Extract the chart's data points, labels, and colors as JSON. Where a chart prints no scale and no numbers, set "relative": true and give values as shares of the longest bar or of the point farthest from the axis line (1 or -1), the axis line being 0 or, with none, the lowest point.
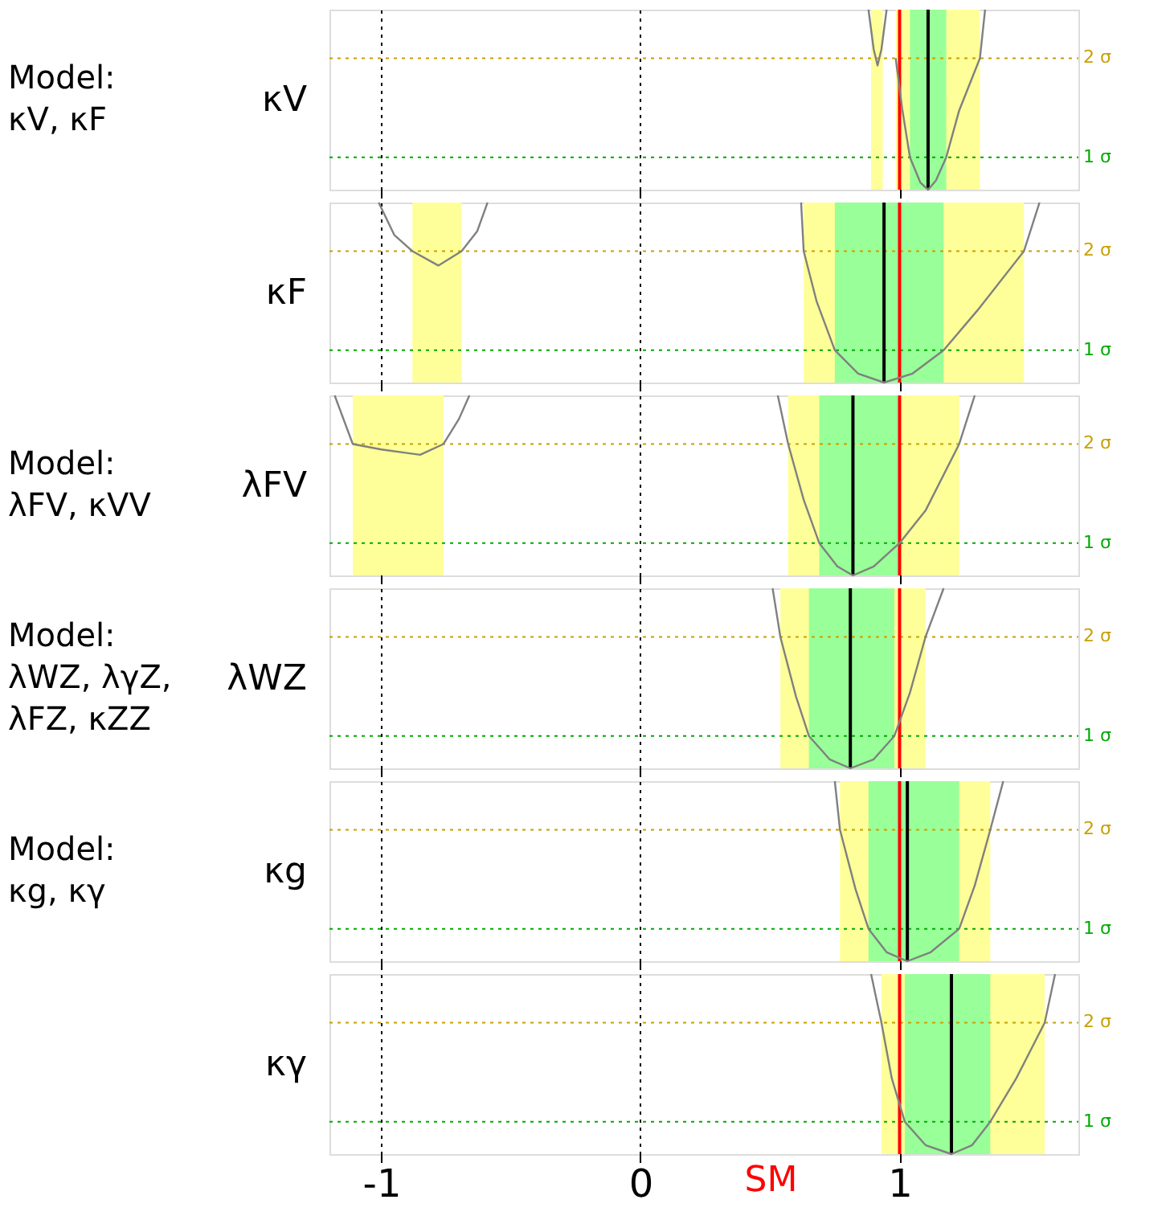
{
  "chart_data": [
    {
      "type": "line",
      "relative": true,
      "ylabel": "κV",
      "annotations": [
        "Model:",
        "κV, κF"
      ],
      "xlim": [
        -1.2,
        1.69
      ],
      "xticks": [
        -1,
        0,
        1
      ],
      "grid": "x",
      "tick_labels": false,
      "series": [
        {
          "color": "#808080",
          "x": [
            0.88,
            0.9,
            0.915,
            0.93,
            0.95,
            0.97,
            0.985,
            1.01,
            1.04,
            1.08,
            1.11,
            1.14,
            1.18,
            1.23,
            1.31,
            1.33
          ],
          "values": [
            1,
            0.78,
            0.69,
            0.78,
            1,
            null,
            0.73,
            0.45,
            0.18,
            0.04,
            0,
            0.05,
            0.18,
            0.44,
            0.73,
            1
          ]
        }
      ],
      "bands": [
        {
          "axis": "x",
          "from": 0.89,
          "to": 0.935,
          "color": "#ffff99"
        },
        {
          "axis": "x",
          "from": 0.985,
          "to": 1.31,
          "color": "#ffff99"
        },
        {
          "axis": "x",
          "from": 1.04,
          "to": 1.18,
          "color": "#99ff99"
        }
      ],
      "ref_lines": [
        {
          "axis": "y",
          "value": 0.18,
          "label": "1 σ",
          "color": "#00aa00",
          "line_style": "dotted"
        },
        {
          "axis": "y",
          "value": 0.73,
          "label": "2 σ",
          "color": "#c8a000",
          "line_style": "dotted"
        },
        {
          "axis": "x",
          "value": 1.11,
          "color": "#000000",
          "line_style": "solid"
        },
        {
          "axis": "x",
          "value": 1,
          "color": "#ff0000",
          "line_style": "solid"
        }
      ]
    },
    {
      "type": "line",
      "relative": true,
      "ylabel": "κF",
      "xlim": [
        -1.2,
        1.69
      ],
      "xticks": [
        -1,
        0,
        1
      ],
      "grid": "x",
      "tick_labels": false,
      "series": [
        {
          "color": "#808080",
          "x": [
            -1.01,
            -0.95,
            -0.88,
            -0.78,
            -0.69,
            -0.63,
            -0.59,
            0,
            0.62,
            0.63,
            0.68,
            0.75,
            0.84,
            0.94,
            1.05,
            1.17,
            1.3,
            1.48,
            1.54
          ],
          "values": [
            1,
            0.82,
            0.73,
            0.65,
            0.73,
            0.84,
            1,
            null,
            1,
            0.73,
            0.45,
            0.18,
            0.05,
            0,
            0.05,
            0.18,
            0.4,
            0.73,
            1
          ]
        }
      ],
      "bands": [
        {
          "axis": "x",
          "from": -0.88,
          "to": -0.69,
          "color": "#ffff99"
        },
        {
          "axis": "x",
          "from": 0.63,
          "to": 1.48,
          "color": "#ffff99"
        },
        {
          "axis": "x",
          "from": 0.75,
          "to": 1.17,
          "color": "#99ff99"
        }
      ],
      "ref_lines": [
        {
          "axis": "y",
          "value": 0.18,
          "label": "1 σ",
          "color": "#00aa00",
          "line_style": "dotted"
        },
        {
          "axis": "y",
          "value": 0.73,
          "label": "2 σ",
          "color": "#c8a000",
          "line_style": "dotted"
        },
        {
          "axis": "x",
          "value": 0.94,
          "color": "#000000",
          "line_style": "solid"
        },
        {
          "axis": "x",
          "value": 1,
          "color": "#ff0000",
          "line_style": "solid"
        }
      ]
    },
    {
      "type": "line",
      "relative": true,
      "ylabel": "λFV",
      "annotations": [
        "Model:",
        "λFV, κVV"
      ],
      "xlim": [
        -1.2,
        1.69
      ],
      "xticks": [
        -1,
        0,
        1
      ],
      "grid": "x",
      "tick_labels": false,
      "series": [
        {
          "color": "#808080",
          "x": [
            -1.18,
            -1.11,
            -1.0,
            -0.85,
            -0.76,
            -0.7,
            -0.66,
            0,
            0.53,
            0.57,
            0.63,
            0.69,
            0.76,
            0.82,
            0.9,
            1.0,
            1.1,
            1.23,
            1.29
          ],
          "values": [
            1,
            0.73,
            0.7,
            0.67,
            0.73,
            0.87,
            1,
            null,
            1,
            0.73,
            0.42,
            0.18,
            0.05,
            0,
            0.05,
            0.18,
            0.36,
            0.73,
            1
          ]
        }
      ],
      "bands": [
        {
          "axis": "x",
          "from": -1.11,
          "to": -0.76,
          "color": "#ffff99"
        },
        {
          "axis": "x",
          "from": 0.57,
          "to": 1.23,
          "color": "#ffff99"
        },
        {
          "axis": "x",
          "from": 0.69,
          "to": 1.0,
          "color": "#99ff99"
        }
      ],
      "ref_lines": [
        {
          "axis": "y",
          "value": 0.18,
          "label": "1 σ",
          "color": "#00aa00",
          "line_style": "dotted"
        },
        {
          "axis": "y",
          "value": 0.73,
          "label": "2 σ",
          "color": "#c8a000",
          "line_style": "dotted"
        },
        {
          "axis": "x",
          "value": 0.82,
          "color": "#000000",
          "line_style": "solid"
        },
        {
          "axis": "x",
          "value": 1,
          "color": "#ff0000",
          "line_style": "solid"
        }
      ]
    },
    {
      "type": "line",
      "relative": true,
      "ylabel": "λWZ",
      "annotations": [
        "Model:",
        "λWZ, λγZ,",
        "λFZ, κZZ"
      ],
      "xlim": [
        -1.2,
        1.69
      ],
      "xticks": [
        -1,
        0,
        1
      ],
      "grid": "x",
      "tick_labels": false,
      "series": [
        {
          "color": "#808080",
          "x": [
            0.51,
            0.54,
            0.6,
            0.65,
            0.73,
            0.81,
            0.9,
            0.98,
            1.04,
            1.1,
            1.17
          ],
          "values": [
            1,
            0.73,
            0.4,
            0.18,
            0.05,
            0,
            0.05,
            0.18,
            0.42,
            0.73,
            1
          ]
        }
      ],
      "bands": [
        {
          "axis": "x",
          "from": 0.54,
          "to": 1.1,
          "color": "#ffff99"
        },
        {
          "axis": "x",
          "from": 0.65,
          "to": 0.98,
          "color": "#99ff99"
        }
      ],
      "ref_lines": [
        {
          "axis": "y",
          "value": 0.18,
          "label": "1 σ",
          "color": "#00aa00",
          "line_style": "dotted"
        },
        {
          "axis": "y",
          "value": 0.73,
          "label": "2 σ",
          "color": "#c8a000",
          "line_style": "dotted"
        },
        {
          "axis": "x",
          "value": 0.81,
          "color": "#000000",
          "line_style": "solid"
        },
        {
          "axis": "x",
          "value": 1,
          "color": "#ff0000",
          "line_style": "solid"
        }
      ]
    },
    {
      "type": "line",
      "relative": true,
      "ylabel": "κg",
      "annotations": [
        "Model:",
        "κg, κγ"
      ],
      "xlim": [
        -1.2,
        1.69
      ],
      "xticks": [
        -1,
        0,
        1
      ],
      "grid": "x",
      "tick_labels": false,
      "series": [
        {
          "color": "#808080",
          "x": [
            0.75,
            0.77,
            0.83,
            0.88,
            0.95,
            1.03,
            1.12,
            1.23,
            1.29,
            1.35,
            1.4
          ],
          "values": [
            1,
            0.73,
            0.4,
            0.18,
            0.05,
            0,
            0.05,
            0.18,
            0.42,
            0.73,
            1
          ]
        }
      ],
      "bands": [
        {
          "axis": "x",
          "from": 0.77,
          "to": 1.35,
          "color": "#ffff99"
        },
        {
          "axis": "x",
          "from": 0.88,
          "to": 1.23,
          "color": "#99ff99"
        }
      ],
      "ref_lines": [
        {
          "axis": "y",
          "value": 0.18,
          "label": "1 σ",
          "color": "#00aa00",
          "line_style": "dotted"
        },
        {
          "axis": "y",
          "value": 0.73,
          "label": "2 σ",
          "color": "#c8a000",
          "line_style": "dotted"
        },
        {
          "axis": "x",
          "value": 1.03,
          "color": "#000000",
          "line_style": "solid"
        },
        {
          "axis": "x",
          "value": 1,
          "color": "#ff0000",
          "line_style": "solid"
        }
      ]
    },
    {
      "type": "line",
      "relative": true,
      "ylabel": "κγ",
      "xlim": [
        -1.2,
        1.69
      ],
      "xticks": [
        -1,
        0,
        1
      ],
      "grid": "x",
      "tick_labels": "x",
      "series": [
        {
          "color": "#808080",
          "x": [
            0.89,
            0.93,
            0.97,
            1.02,
            1.1,
            1.2,
            1.28,
            1.35,
            1.45,
            1.56,
            1.6
          ],
          "values": [
            1,
            0.73,
            0.42,
            0.18,
            0.05,
            0,
            0.05,
            0.18,
            0.42,
            0.73,
            1
          ]
        }
      ],
      "bands": [
        {
          "axis": "x",
          "from": 0.93,
          "to": 1.56,
          "color": "#ffff99"
        },
        {
          "axis": "x",
          "from": 1.02,
          "to": 1.35,
          "color": "#99ff99"
        }
      ],
      "ref_lines": [
        {
          "axis": "y",
          "value": 0.18,
          "label": "1 σ",
          "color": "#00aa00",
          "line_style": "dotted"
        },
        {
          "axis": "y",
          "value": 0.73,
          "label": "2 σ",
          "color": "#c8a000",
          "line_style": "dotted"
        },
        {
          "axis": "x",
          "value": 1.2,
          "color": "#000000",
          "line_style": "solid"
        },
        {
          "axis": "x",
          "value": 1,
          "color": "#ff0000",
          "line_style": "solid",
          "label": "SM"
        }
      ]
    }
  ]
}
